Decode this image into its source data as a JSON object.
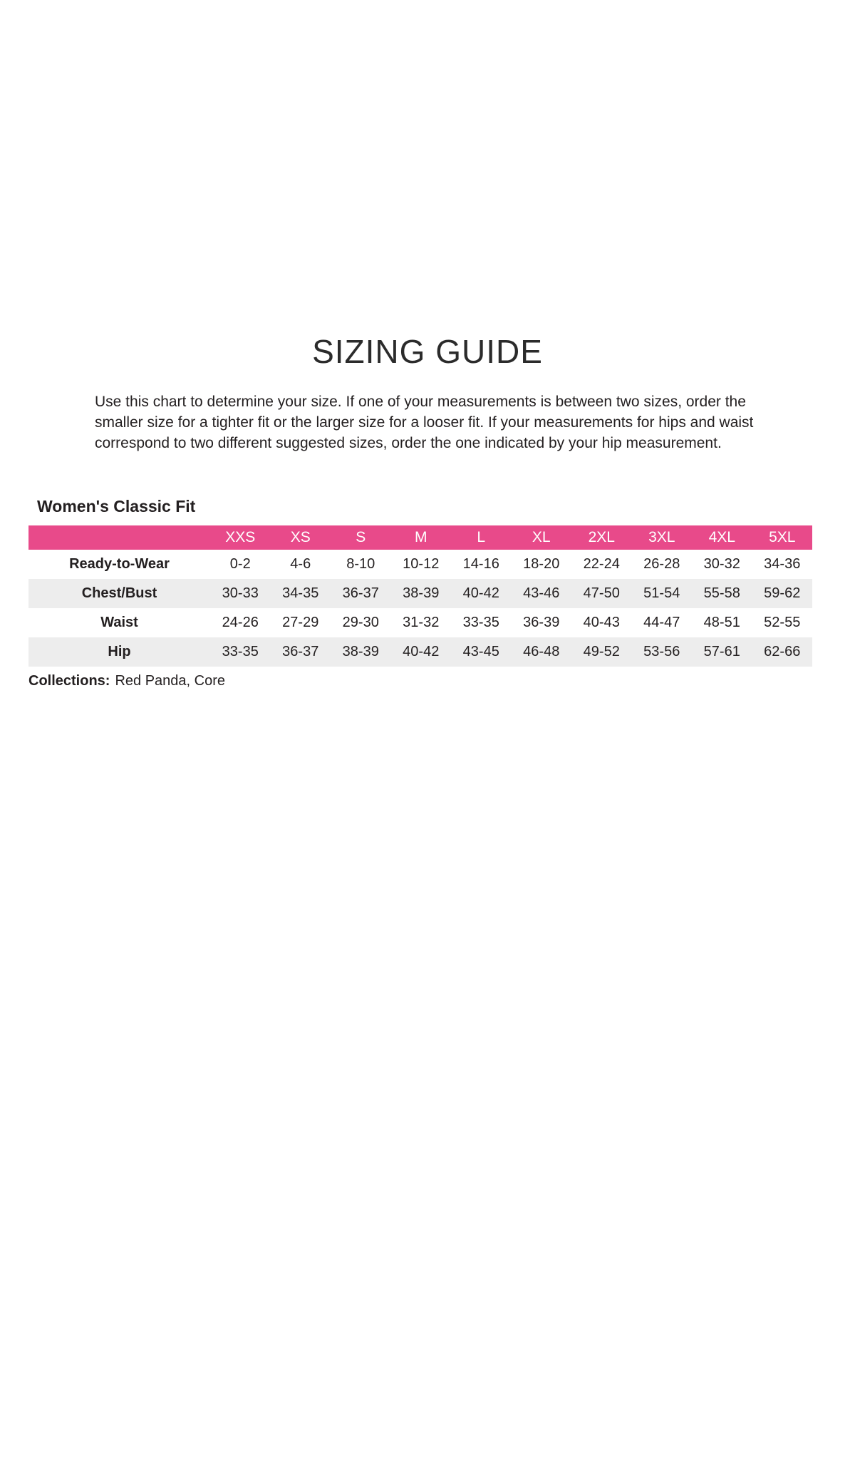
{
  "title": "SIZING GUIDE",
  "intro": "Use this chart to determine your size. If one of your measurements is between two sizes, order the smaller size for a tighter fit or the larger size for a looser fit. If your measurements for hips and waist correspond to two different suggested sizes, order the one indicated by your hip measurement.",
  "section": {
    "title": "Women's Classic Fit"
  },
  "size_table": {
    "columns": [
      "XXS",
      "XS",
      "S",
      "M",
      "L",
      "XL",
      "2XL",
      "3XL",
      "4XL",
      "5XL"
    ],
    "rows": [
      {
        "label": "Ready-to-Wear",
        "values": [
          "0-2",
          "4-6",
          "8-10",
          "10-12",
          "14-16",
          "18-20",
          "22-24",
          "26-28",
          "30-32",
          "34-36"
        ]
      },
      {
        "label": "Chest/Bust",
        "values": [
          "30-33",
          "34-35",
          "36-37",
          "38-39",
          "40-42",
          "43-46",
          "47-50",
          "51-54",
          "55-58",
          "59-62"
        ]
      },
      {
        "label": "Waist",
        "values": [
          "24-26",
          "27-29",
          "29-30",
          "31-32",
          "33-35",
          "36-39",
          "40-43",
          "44-47",
          "48-51",
          "52-55"
        ]
      },
      {
        "label": "Hip",
        "values": [
          "33-35",
          "36-37",
          "38-39",
          "40-42",
          "43-45",
          "46-48",
          "49-52",
          "53-56",
          "57-61",
          "62-66"
        ]
      }
    ]
  },
  "collections": {
    "label": "Collections:",
    "value": "Red Panda, Core"
  },
  "colors": {
    "header_pink": "#E84A8A",
    "row_alt_gray": "#EDEDED",
    "text": "#231F20"
  }
}
